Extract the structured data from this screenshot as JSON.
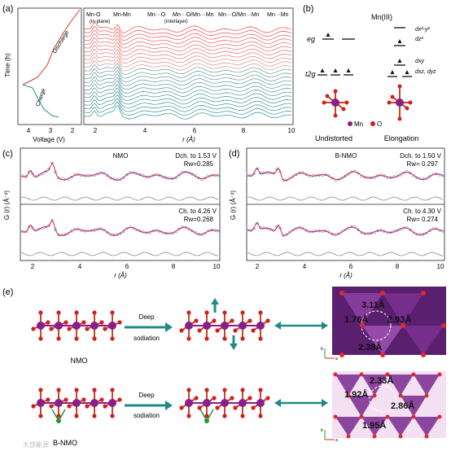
{
  "panels": {
    "a": {
      "label": "(a)",
      "time_axis": "Time (h)",
      "voltage_axis": "Voltage (V)",
      "voltage_ticks": [
        "4",
        "3",
        "2"
      ],
      "discharge": "Discharge",
      "charge": "Charge",
      "r_axis": "r (Å)",
      "r_ticks": [
        "2",
        "4",
        "6",
        "8",
        "10"
      ],
      "peak_labels": {
        "mno": "Mn-O",
        "mno_sub": "(in-plane)",
        "mnmn": "Mn-Mn",
        "mno2": "Mn···O",
        "mno2_sub": "(interlayer)",
        "mnomnmn": "Mn···O/Mn···Mn",
        "mnomnmn2": "Mn···O/Mn···Mn",
        "mnmn2": "Mn···Mn"
      }
    },
    "b": {
      "label": "(b)",
      "title": "Mn(III)",
      "eg": "eg",
      "t2g": "t2g",
      "dz2y2": "dx²-y²",
      "dz2": "dz²",
      "dxy": "dxy",
      "dxzdyz": "dxz, dyz",
      "legend_mn": "Mn",
      "legend_o": "O",
      "undistorted": "Undistorted",
      "elongation": "Elongation"
    },
    "c": {
      "label": "(c)",
      "title": "NMO",
      "ylabel": "G (r) (Å⁻²)",
      "xlabel": "r (Å)",
      "x_ticks": [
        "2",
        "4",
        "6",
        "8",
        "10"
      ],
      "top_cond": "Dch. to 1.53 V",
      "top_rw": "Rw=0.285",
      "bot_cond": "Ch. to 4.26 V",
      "bot_rw": "Rw=0.268"
    },
    "d": {
      "label": "(d)",
      "title": "B-NMO",
      "ylabel": "G (r) (Å⁻²)",
      "xlabel": "r (Å)",
      "x_ticks": [
        "2",
        "4",
        "6",
        "8",
        "10"
      ],
      "top_cond": "Dch. to 1.50 V",
      "top_rw": "Rw= 0.297",
      "bot_cond": "Ch. to 4.30 V",
      "bot_rw": "Rw= 0.274"
    },
    "e": {
      "label": "(e)",
      "nmo": "NMO",
      "bnmo": "B-NMO",
      "deep": "Deep",
      "sodiation": "sodiation",
      "top_dists": [
        "3.11Å",
        "1.76Å",
        "2.93Å",
        "2.38Å"
      ],
      "bot_dists": [
        "2.33Å",
        "1.92Å",
        "2.86Å",
        "1.95Å"
      ],
      "axis_b": "b",
      "axis_a": "a",
      "watermark": "大部能源"
    }
  },
  "colors": {
    "red_curve": "#d9342b",
    "teal_curve": "#2e8f8f",
    "fit_red": "#d42a3a",
    "data_blue": "#6a7fd8",
    "mn_purple": "#8a1e8a",
    "o_red": "#d11f1f",
    "arrow_teal": "#218a86",
    "octahedra": "#7b2a8f"
  }
}
